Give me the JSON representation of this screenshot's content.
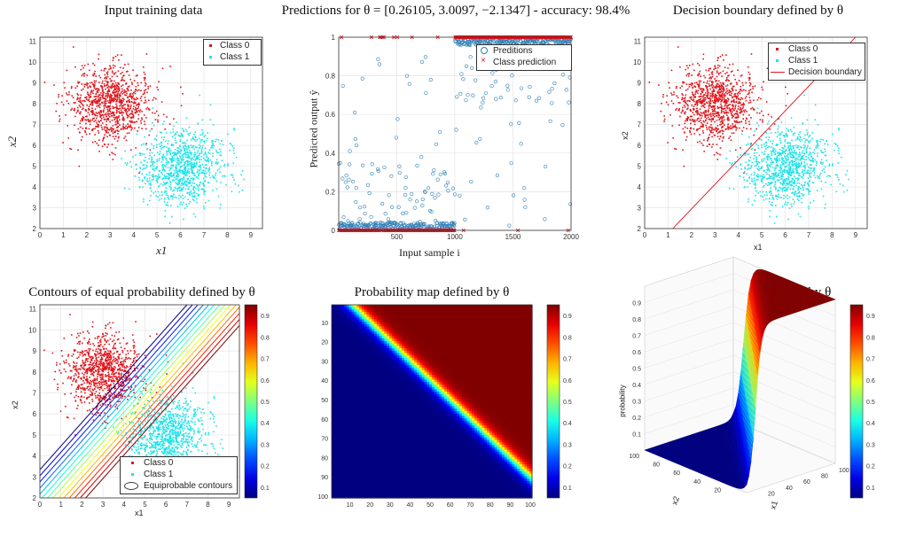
{
  "charts": {
    "p1": {
      "title": "Input training data",
      "xlabel": "x1",
      "ylabel": "x2"
    },
    "p2": {
      "title": "Predictions for θ = [0.26105, 3.0097, −2.1347] - accuracy: 98.4%",
      "xlabel": "Input sample i",
      "ylabel": "Predicted output ŷ"
    },
    "p3": {
      "title": "Decision boundary defined by θ",
      "xlabel": "x1",
      "ylabel": "x2"
    },
    "p4": {
      "title": "Contours of equal probability defined by θ",
      "xlabel": "x1",
      "ylabel": "x2"
    },
    "p5": {
      "title": "Probability map defined by θ"
    },
    "p6": {
      "title": "Probability map defined by θ",
      "xlabel": "x1",
      "ylabel": "x2",
      "zlabel": "probability"
    }
  },
  "legend": {
    "class0": "Class 0",
    "class1": "Class 1",
    "preditions": "Preditions",
    "class_prediction": "Class prediction",
    "decision_boundary": "Decision boundary",
    "equiprobable": "Equiprobable contours"
  },
  "colors": {
    "class0": "#e0141b",
    "class1": "#1fe3e8",
    "pred": "#2f7fb6",
    "boundary": "#e0141b",
    "frame": "#333333"
  },
  "chart_data": [
    {
      "type": "scatter",
      "title": "Input training data",
      "xlabel": "x1",
      "ylabel": "x2",
      "xlim": [
        0,
        9.5
      ],
      "ylim": [
        2,
        11.2
      ],
      "xticks": [
        0,
        1,
        2,
        3,
        4,
        5,
        6,
        7,
        8,
        9
      ],
      "yticks": [
        2,
        3,
        4,
        5,
        6,
        7,
        8,
        9,
        10,
        11
      ],
      "series": [
        {
          "name": "Class 0",
          "center": [
            3.0,
            8.0
          ],
          "std": [
            0.9,
            0.9
          ],
          "count": 1000
        },
        {
          "name": "Class 1",
          "center": [
            6.0,
            5.0
          ],
          "std": [
            0.9,
            0.9
          ],
          "count": 1000
        }
      ],
      "grid": true,
      "legend": "top-right"
    },
    {
      "type": "scatter",
      "title": "Predictions for θ = [0.26105, 3.0097, −2.1347] - accuracy: 98.4%",
      "xlabel": "Input sample i",
      "ylabel": "Predicted output ŷ",
      "xlim": [
        1,
        2000
      ],
      "ylim": [
        0,
        1
      ],
      "xticks": [
        500,
        1000,
        1500,
        2000
      ],
      "yticks": [
        0,
        0.2,
        0.4,
        0.6,
        0.8,
        1
      ],
      "theta": [
        0.26105,
        3.0097,
        -2.1347
      ],
      "accuracy": "98.4%",
      "series": [
        {
          "name": "Preditions",
          "marker": "circle"
        },
        {
          "name": "Class prediction",
          "marker": "x",
          "values": "0 for i≤1000, 1 for i>1000 (with misclassified points)"
        }
      ],
      "grid": true,
      "legend": "top-right"
    },
    {
      "type": "scatter",
      "title": "Decision boundary defined by θ",
      "xlabel": "x1",
      "ylabel": "x2",
      "xlim": [
        0,
        9.5
      ],
      "ylim": [
        2,
        11.2
      ],
      "xticks": [
        0,
        1,
        2,
        3,
        4,
        5,
        6,
        7,
        8,
        9
      ],
      "yticks": [
        2,
        3,
        4,
        5,
        6,
        7,
        8,
        9,
        10,
        11
      ],
      "boundary_line": {
        "x": [
          1.2,
          9.0
        ],
        "y": [
          2.0,
          11.2
        ]
      },
      "series": [
        {
          "name": "Class 0"
        },
        {
          "name": "Class 1"
        },
        {
          "name": "Decision boundary"
        }
      ],
      "grid": true,
      "legend": "top-right"
    },
    {
      "type": "contour",
      "title": "Contours of equal probability defined by θ",
      "xlabel": "x1",
      "ylabel": "x2",
      "xlim": [
        0,
        9.5
      ],
      "ylim": [
        2,
        11.2
      ],
      "xticks": [
        0,
        1,
        2,
        3,
        4,
        5,
        6,
        7,
        8,
        9
      ],
      "yticks": [
        2,
        3,
        4,
        5,
        6,
        7,
        8,
        9,
        10,
        11
      ],
      "colorbar": {
        "min": 0.05,
        "max": 0.95,
        "ticks": [
          0.1,
          0.2,
          0.3,
          0.4,
          0.5,
          0.6,
          0.7,
          0.8,
          0.9
        ]
      },
      "series": [
        {
          "name": "Class 0"
        },
        {
          "name": "Class 1"
        },
        {
          "name": "Equiprobable contours"
        }
      ],
      "legend": "bottom-right"
    },
    {
      "type": "heatmap",
      "title": "Probability map defined by θ",
      "xticks": [
        10,
        20,
        30,
        40,
        50,
        60,
        70,
        80,
        90,
        100
      ],
      "yticks": [
        10,
        20,
        30,
        40,
        50,
        60,
        70,
        80,
        90,
        100
      ],
      "colorbar": {
        "ticks": [
          0.1,
          0.2,
          0.3,
          0.4,
          0.5,
          0.6,
          0.7,
          0.8,
          0.9
        ]
      }
    },
    {
      "type": "surface",
      "title": "Probability map defined by θ",
      "xlabel": "x1",
      "ylabel": "x2",
      "zlabel": "probability",
      "xticks": [
        20,
        40,
        60,
        80,
        100
      ],
      "yticks": [
        20,
        40,
        60,
        80,
        100
      ],
      "zticks": [
        0.1,
        0.2,
        0.3,
        0.4,
        0.5,
        0.6,
        0.7,
        0.8,
        0.9
      ],
      "colorbar": {
        "ticks": [
          0.1,
          0.2,
          0.3,
          0.4,
          0.5,
          0.6,
          0.7,
          0.8,
          0.9
        ]
      }
    }
  ]
}
